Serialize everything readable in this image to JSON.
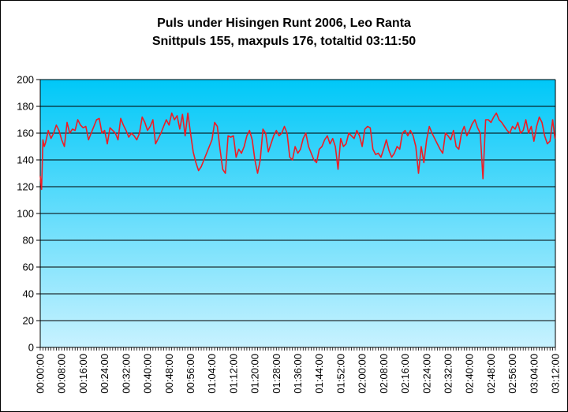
{
  "chart_data": {
    "type": "line",
    "title": "Puls under Hisingen Runt 2006, Leo Ranta",
    "subtitle": "Snittpuls 155, maxpuls 176, totaltid 03:11:50",
    "xlabel": "",
    "ylabel": "",
    "ylim": [
      0,
      200
    ],
    "yticks": [
      "0",
      "20",
      "40",
      "60",
      "80",
      "100",
      "120",
      "140",
      "160",
      "180",
      "200"
    ],
    "xlim": [
      "00:00:00",
      "03:12:00"
    ],
    "xticks": [
      "00:00:00",
      "00:08:00",
      "00:16:00",
      "00:24:00",
      "00:32:00",
      "00:40:00",
      "00:48:00",
      "00:56:00",
      "01:04:00",
      "01:12:00",
      "01:20:00",
      "01:28:00",
      "01:36:00",
      "01:44:00",
      "01:52:00",
      "02:00:00",
      "02:08:00",
      "02:16:00",
      "02:24:00",
      "02:32:00",
      "02:40:00",
      "02:48:00",
      "02:56:00",
      "03:04:00",
      "03:12:00"
    ],
    "grid": true,
    "plot_background": "gradient #00c8f8 (top) to #c4f1ff (bottom)",
    "line_color": "#ee1c24",
    "series": [
      {
        "x": [
          "00:00:00",
          "00:00:30",
          "00:01:00",
          "00:01:30",
          "00:02:00",
          "00:03:00",
          "00:04:00",
          "00:05:00",
          "00:06:00",
          "00:07:00",
          "00:08:00",
          "00:09:00",
          "00:10:00",
          "00:11:00",
          "00:12:00",
          "00:13:00",
          "00:14:00",
          "00:15:00",
          "00:16:00",
          "00:17:00",
          "00:18:00",
          "00:19:00",
          "00:20:00",
          "00:21:00",
          "00:22:00",
          "00:23:00",
          "00:24:00",
          "00:25:00",
          "00:26:00",
          "00:27:00",
          "00:28:00",
          "00:29:00",
          "00:30:00",
          "00:31:00",
          "00:32:00",
          "00:33:00",
          "00:34:00",
          "00:35:00",
          "00:36:00",
          "00:37:00",
          "00:38:00",
          "00:39:00",
          "00:40:00",
          "00:41:00",
          "00:42:00",
          "00:43:00",
          "00:44:00",
          "00:45:00",
          "00:46:00",
          "00:47:00",
          "00:48:00",
          "00:49:00",
          "00:50:00",
          "00:51:00",
          "00:52:00",
          "00:53:00",
          "00:54:00",
          "00:55:00",
          "00:56:00",
          "00:57:00",
          "00:58:00",
          "00:59:00",
          "01:00:00",
          "01:01:00",
          "01:02:00",
          "01:03:00",
          "01:04:00",
          "01:05:00",
          "01:06:00",
          "01:07:00",
          "01:08:00",
          "01:09:00",
          "01:10:00",
          "01:11:00",
          "01:12:00",
          "01:13:00",
          "01:14:00",
          "01:15:00",
          "01:16:00",
          "01:17:00",
          "01:18:00",
          "01:19:00",
          "01:20:00",
          "01:21:00",
          "01:22:00",
          "01:23:00",
          "01:24:00",
          "01:25:00",
          "01:26:00",
          "01:27:00",
          "01:28:00",
          "01:29:00",
          "01:30:00",
          "01:31:00",
          "01:32:00",
          "01:33:00",
          "01:34:00",
          "01:35:00",
          "01:36:00",
          "01:37:00",
          "01:38:00",
          "01:39:00",
          "01:40:00",
          "01:41:00",
          "01:42:00",
          "01:43:00",
          "01:44:00",
          "01:45:00",
          "01:46:00",
          "01:47:00",
          "01:48:00",
          "01:49:00",
          "01:50:00",
          "01:51:00",
          "01:52:00",
          "01:53:00",
          "01:54:00",
          "01:55:00",
          "01:56:00",
          "01:57:00",
          "01:58:00",
          "01:59:00",
          "02:00:00",
          "02:01:00",
          "02:02:00",
          "02:03:00",
          "02:04:00",
          "02:05:00",
          "02:06:00",
          "02:07:00",
          "02:08:00",
          "02:09:00",
          "02:10:00",
          "02:11:00",
          "02:12:00",
          "02:13:00",
          "02:14:00",
          "02:15:00",
          "02:16:00",
          "02:17:00",
          "02:18:00",
          "02:19:00",
          "02:20:00",
          "02:21:00",
          "02:22:00",
          "02:23:00",
          "02:24:00",
          "02:25:00",
          "02:26:00",
          "02:27:00",
          "02:28:00",
          "02:29:00",
          "02:30:00",
          "02:31:00",
          "02:32:00",
          "02:33:00",
          "02:34:00",
          "02:35:00",
          "02:36:00",
          "02:37:00",
          "02:38:00",
          "02:39:00",
          "02:40:00",
          "02:41:00",
          "02:42:00",
          "02:43:00",
          "02:44:00",
          "02:45:00",
          "02:46:00",
          "02:47:00",
          "02:48:00",
          "02:49:00",
          "02:50:00",
          "02:51:00",
          "02:52:00",
          "02:53:00",
          "02:54:00",
          "02:55:00",
          "02:56:00",
          "02:57:00",
          "02:58:00",
          "02:59:00",
          "03:00:00",
          "03:01:00",
          "03:02:00",
          "03:03:00",
          "03:04:00",
          "03:05:00",
          "03:06:00",
          "03:07:00",
          "03:08:00",
          "03:09:00",
          "03:10:00",
          "03:11:00",
          "03:11:50"
        ],
        "values": [
          128,
          118,
          155,
          150,
          153,
          162,
          156,
          160,
          166,
          162,
          155,
          150,
          168,
          160,
          163,
          162,
          170,
          166,
          164,
          165,
          155,
          160,
          165,
          170,
          171,
          160,
          162,
          152,
          164,
          162,
          160,
          155,
          171,
          166,
          162,
          157,
          160,
          158,
          155,
          160,
          172,
          168,
          162,
          165,
          170,
          152,
          156,
          160,
          165,
          170,
          166,
          175,
          170,
          173,
          163,
          174,
          158,
          175,
          160,
          146,
          138,
          132,
          135,
          140,
          145,
          150,
          155,
          168,
          165,
          148,
          133,
          130,
          158,
          157,
          158,
          142,
          148,
          145,
          150,
          158,
          162,
          155,
          140,
          130,
          140,
          163,
          160,
          146,
          152,
          158,
          162,
          158,
          160,
          165,
          160,
          142,
          140,
          150,
          145,
          148,
          156,
          160,
          150,
          145,
          140,
          138,
          148,
          150,
          155,
          158,
          152,
          156,
          150,
          133,
          156,
          150,
          152,
          160,
          158,
          156,
          162,
          158,
          150,
          163,
          165,
          164,
          148,
          144,
          145,
          142,
          148,
          155,
          147,
          142,
          145,
          150,
          148,
          160,
          162,
          158,
          162,
          158,
          150,
          130,
          150,
          138,
          155,
          165,
          160,
          156,
          152,
          148,
          145,
          160,
          158,
          155,
          162,
          150,
          148,
          160,
          165,
          158,
          162,
          167,
          170,
          164,
          160,
          126,
          170,
          170,
          168,
          172,
          175,
          170,
          168,
          165,
          162,
          160,
          165,
          163,
          168,
          160,
          162,
          170,
          160,
          165,
          154,
          165,
          172,
          168,
          158,
          152,
          154,
          170,
          156
        ]
      }
    ]
  }
}
